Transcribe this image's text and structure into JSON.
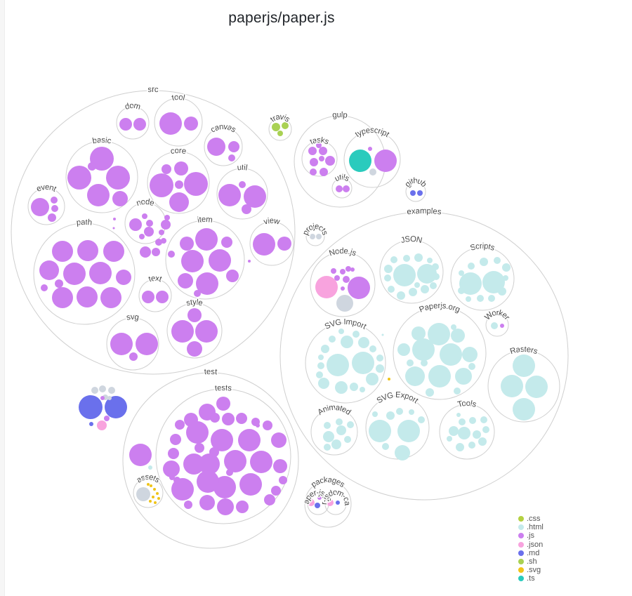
{
  "title": "paperjs/paper.js",
  "colors": {
    ".css": "#b4d141",
    ".html": "#c4eaeb",
    ".js": "#cc7fef",
    ".json": "#f8a3de",
    ".md": "#6a70ec",
    ".sh": "#a9d153",
    ".svg": "#f0c419",
    ".ts": "#2acbbd",
    "other": "#cfd6df"
  },
  "legend": [
    {
      "ext": ".css"
    },
    {
      "ext": ".html"
    },
    {
      "ext": ".js"
    },
    {
      "ext": ".json"
    },
    {
      "ext": ".md"
    },
    {
      "ext": ".sh"
    },
    {
      "ext": ".svg"
    },
    {
      "ext": ".ts"
    }
  ],
  "folders": [
    {
      "name": "src"
    },
    {
      "name": "dom"
    },
    {
      "name": "tool"
    },
    {
      "name": "canvas"
    },
    {
      "name": "basic"
    },
    {
      "name": "core"
    },
    {
      "name": "util"
    },
    {
      "name": "event"
    },
    {
      "name": "node"
    },
    {
      "name": "path"
    },
    {
      "name": "item"
    },
    {
      "name": "view"
    },
    {
      "name": "text"
    },
    {
      "name": "svg"
    },
    {
      "name": "style"
    },
    {
      "name": "travis"
    },
    {
      "name": "gulp"
    },
    {
      "name": "tasks"
    },
    {
      "name": "typescript"
    },
    {
      "name": "utils"
    },
    {
      "name": "github"
    },
    {
      "name": "projects"
    },
    {
      "name": "examples"
    },
    {
      "name": "JSON"
    },
    {
      "name": "Node.js"
    },
    {
      "name": "Scripts"
    },
    {
      "name": "Paperjs.org"
    },
    {
      "name": "Worker"
    },
    {
      "name": "SVG Import"
    },
    {
      "name": "Rasters"
    },
    {
      "name": "Animated"
    },
    {
      "name": "SVG Export"
    },
    {
      "name": "Tools"
    },
    {
      "name": "test"
    },
    {
      "name": "tests"
    },
    {
      "name": "assets"
    },
    {
      "name": "packages"
    },
    {
      "name": "paper-jsdom"
    },
    {
      "name": "paper-jsdom-canvas"
    }
  ]
}
